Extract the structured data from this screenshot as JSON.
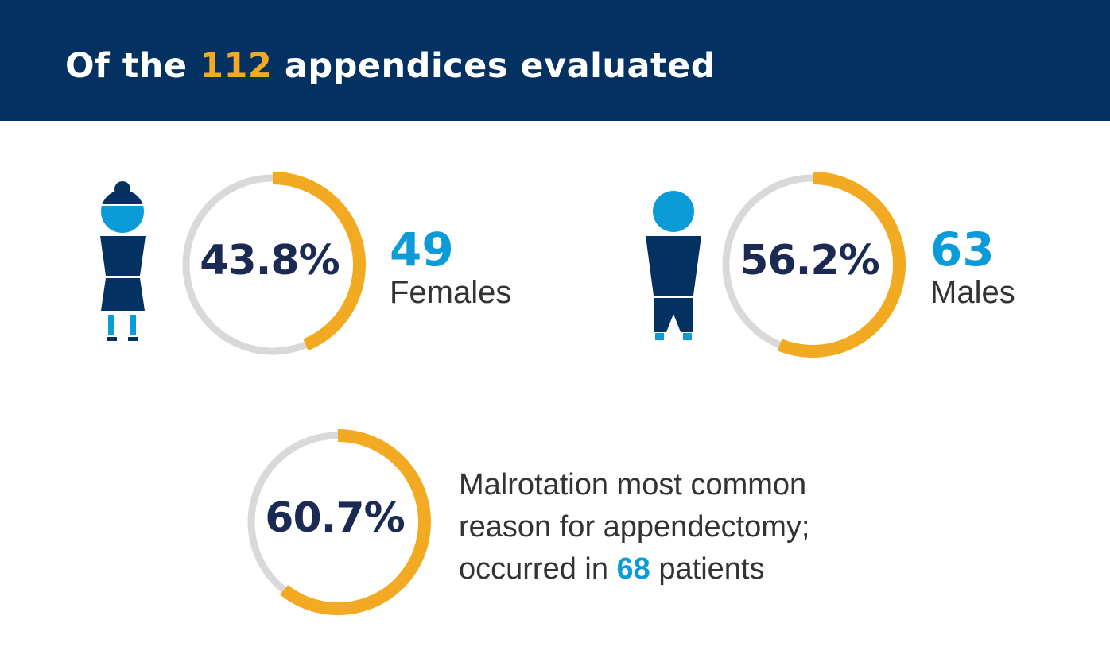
{
  "header": {
    "title_before": "Of the",
    "title_highlight": "112",
    "title_after": "appendices evaluated"
  },
  "colors": {
    "header_bg": "#033161",
    "accent_orange": "#f2aa22",
    "accent_blue": "#0b9bd9",
    "ring_track": "#d9d9d9",
    "navy": "#033161"
  },
  "female": {
    "icon": "female-person-icon",
    "percent_label": "43.8%",
    "count": "49",
    "label": "Females"
  },
  "male": {
    "icon": "male-person-icon",
    "percent_label": "56.2%",
    "count": "63",
    "label": "Males"
  },
  "malrotation": {
    "percent_label": "60.7%",
    "line1": "Malrotation most common",
    "line2": "reason for appendectomy;",
    "line3_before": "occurred in",
    "line3_highlight": "68",
    "line3_after": "patients"
  },
  "chart_data": [
    {
      "type": "pie",
      "style": "donut-gauge",
      "value_percent": 43.8,
      "count": 49,
      "label": "Females"
    },
    {
      "type": "pie",
      "style": "donut-gauge",
      "value_percent": 56.2,
      "count": 63,
      "label": "Males"
    },
    {
      "type": "pie",
      "style": "donut-gauge",
      "value_percent": 60.7,
      "count": 68,
      "label": "Malrotation"
    }
  ]
}
